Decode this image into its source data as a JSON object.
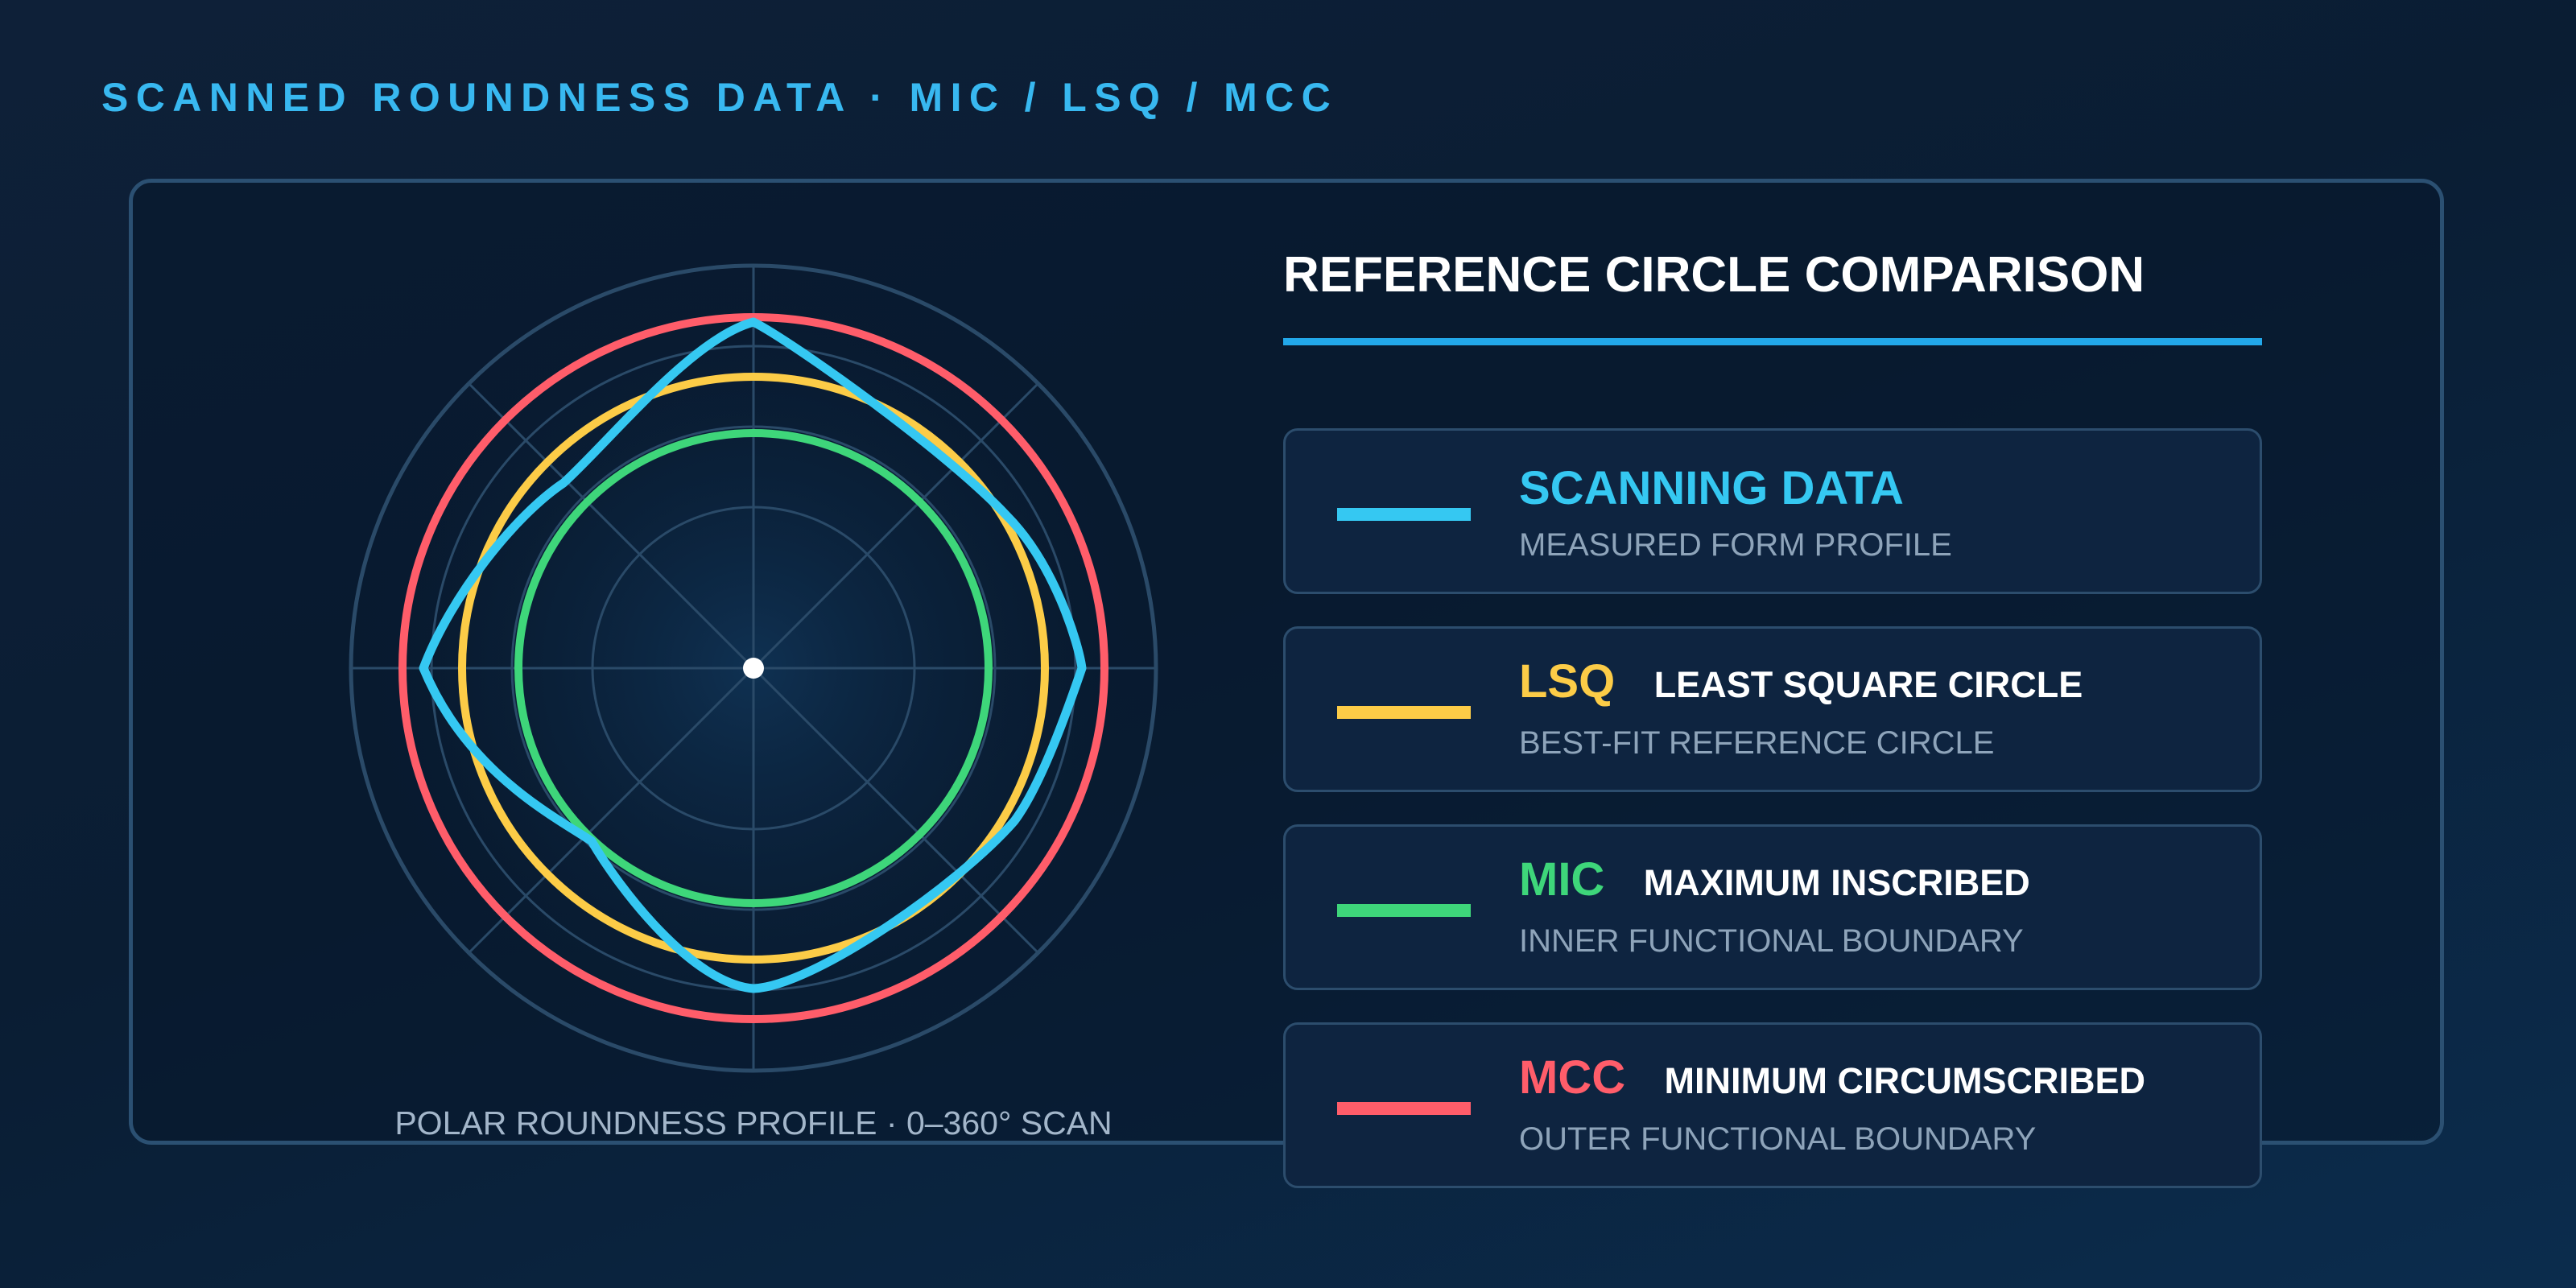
{
  "page": {
    "title": "SCANNED ROUNDNESS DATA · MIC / LSQ / MCC"
  },
  "diagram": {
    "caption": "POLAR ROUNDNESS PROFILE · 0–360° SCAN"
  },
  "legend": {
    "title": "REFERENCE CIRCLE COMPARISON",
    "items": [
      {
        "code": "SCANNING DATA",
        "name": "",
        "description": "MEASURED FORM PROFILE",
        "color": "#35c8f2"
      },
      {
        "code": "LSQ",
        "name": "LEAST SQUARE CIRCLE",
        "description": "BEST-FIT REFERENCE CIRCLE",
        "color": "#fccc47"
      },
      {
        "code": "MIC",
        "name": "MAXIMUM INSCRIBED",
        "description": "INNER FUNCTIONAL BOUNDARY",
        "color": "#3ed67a"
      },
      {
        "code": "MCC",
        "name": "MINIMUM CIRCUMSCRIBED",
        "description": "OUTER FUNCTIONAL BOUNDARY",
        "color": "#ff5d6a"
      }
    ]
  },
  "colors": {
    "accent": "#38b8f0",
    "grid": "#2a4a68",
    "scan": "#35c8f2",
    "lsq": "#fccc47",
    "mic": "#3ed67a",
    "mcc": "#ff5d6a"
  }
}
